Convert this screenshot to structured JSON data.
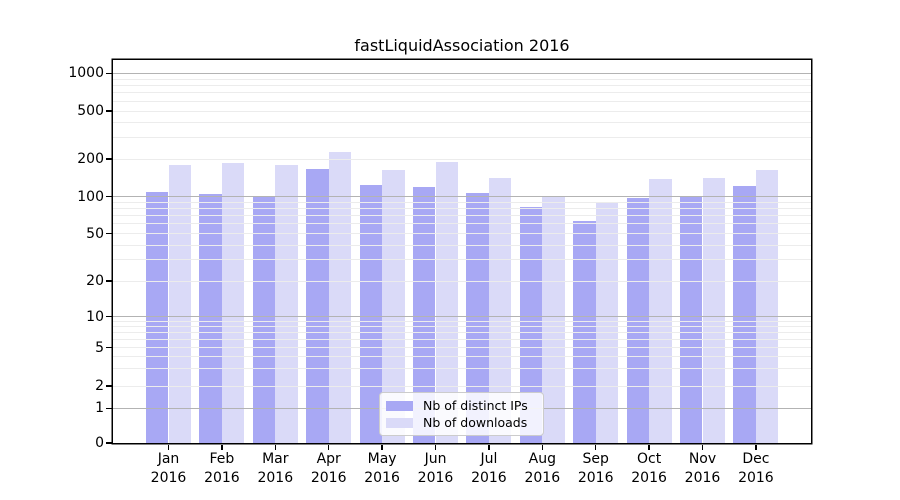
{
  "chart_data": {
    "type": "bar",
    "title": "fastLiquidAssociation 2016",
    "categories": [
      "Jan",
      "Feb",
      "Mar",
      "Apr",
      "May",
      "Jun",
      "Jul",
      "Aug",
      "Sep",
      "Oct",
      "Nov",
      "Dec"
    ],
    "category_year": "2016",
    "series": [
      {
        "name": "Nb of distinct IPs",
        "color": "#a8a8f4",
        "values": [
          110,
          106,
          100,
          165,
          125,
          120,
          108,
          83,
          63,
          98,
          100,
          122
        ]
      },
      {
        "name": "Nb of downloads",
        "color": "#dadaf8",
        "values": [
          178,
          186,
          180,
          228,
          163,
          191,
          140,
          100,
          91,
          138,
          140,
          164
        ]
      }
    ],
    "yscale": "symlog",
    "y_ticks": [
      "0",
      "1",
      "2",
      "5",
      "10",
      "20",
      "50",
      "100",
      "200",
      "500",
      "1000"
    ],
    "ylim": [
      0,
      1300
    ],
    "xlabel": "",
    "ylabel": "",
    "grid": "horizontal major and minor, drawn above bars",
    "legend_position": "lower center"
  },
  "colors": {
    "major_grid": "#b3b3b3",
    "minor_grid": "#ececec",
    "axis": "#000000",
    "legend_border": "#cccccc"
  }
}
